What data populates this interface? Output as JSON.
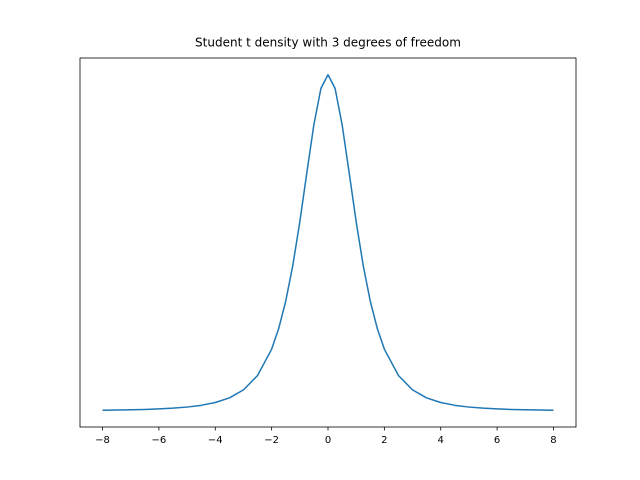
{
  "chart_data": {
    "type": "line",
    "title": "Student t density with 3 degrees of freedom",
    "x": [
      -8,
      -7.5,
      -7,
      -6.5,
      -6,
      -5.5,
      -5,
      -4.5,
      -4,
      -3.5,
      -3,
      -2.5,
      -2,
      -1.75,
      -1.5,
      -1.25,
      -1,
      -0.75,
      -0.5,
      -0.25,
      0,
      0.25,
      0.5,
      0.75,
      1,
      1.25,
      1.5,
      1.75,
      2,
      2.5,
      3,
      3.5,
      4,
      4.5,
      5,
      5.5,
      6,
      6.5,
      7,
      7.5,
      8
    ],
    "series": [
      {
        "color": "#1f77b4",
        "values": [
          0.00074,
          0.00094,
          0.0012,
          0.0016,
          0.0022,
          0.003,
          0.0042,
          0.0061,
          0.0092,
          0.0142,
          0.023,
          0.0387,
          0.0675,
          0.09,
          0.12,
          0.1589,
          0.2067,
          0.2607,
          0.3132,
          0.3528,
          0.3676,
          0.3528,
          0.3132,
          0.2607,
          0.2067,
          0.1589,
          0.12,
          0.09,
          0.0675,
          0.0387,
          0.023,
          0.0142,
          0.0092,
          0.0061,
          0.0042,
          0.003,
          0.0022,
          0.0016,
          0.0012,
          0.00094,
          0.00074
        ]
      }
    ],
    "xlim": [
      -8.8,
      8.8
    ],
    "xticks": [
      {
        "value": -8,
        "label": "−8"
      },
      {
        "value": -6,
        "label": "−6"
      },
      {
        "value": -4,
        "label": "−4"
      },
      {
        "value": -2,
        "label": "−2"
      },
      0,
      2,
      4,
      6,
      8
    ],
    "ylim": [
      -0.0176,
      0.3859
    ]
  }
}
